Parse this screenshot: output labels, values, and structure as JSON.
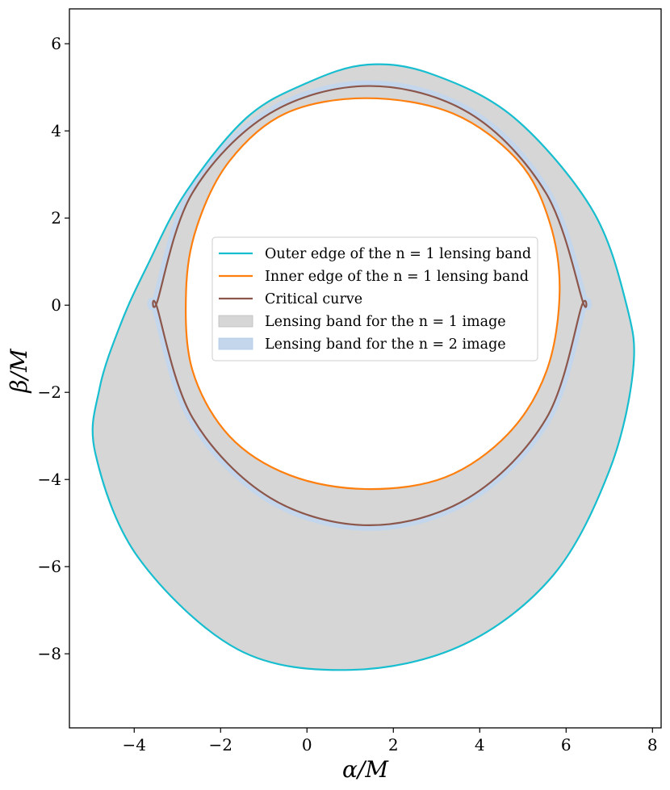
{
  "chart_data": {
    "type": "line",
    "title": "",
    "xlabel": "α/M",
    "ylabel": "β/M",
    "xlim": [
      -5.5,
      8.2
    ],
    "ylim": [
      -9.7,
      6.8
    ],
    "xticks": [
      -4,
      -2,
      0,
      2,
      4,
      6,
      8
    ],
    "yticks": [
      -8,
      -6,
      -4,
      -2,
      0,
      2,
      4,
      6
    ],
    "xtick_labels": [
      "−4",
      "−2",
      "0",
      "2",
      "4",
      "6",
      "8"
    ],
    "ytick_labels": [
      "−8",
      "−6",
      "−4",
      "−2",
      "0",
      "2",
      "4",
      "6"
    ],
    "grid": false,
    "legend_position": "center",
    "legend": [
      "Outer edge of the n = 1 lensing band",
      "Inner edge of the n = 1 lensing band",
      "Critical curve",
      "Lensing band for the n = 1 image",
      "Lensing band for the n = 2 image"
    ],
    "colors": {
      "outer_edge": "#17becf",
      "inner_edge": "#ff7f0e",
      "critical_curve": "#8c564b",
      "band_n1": "#d6d6d6",
      "band_n2": "#c3d6ec"
    },
    "series": [
      {
        "name": "Outer edge of the n = 1 lensing band",
        "kind": "line",
        "x": [
          1.4,
          2.9,
          4.8,
          6.6,
          7.4,
          7.55,
          7.0,
          5.7,
          3.6,
          1.0,
          -1.6,
          -3.9,
          -4.9,
          -4.8,
          -4.3,
          -3.7,
          -2.8,
          -1.4,
          0.0,
          1.4
        ],
        "y": [
          5.52,
          5.3,
          4.3,
          2.2,
          0.0,
          -1.5,
          -3.8,
          -6.2,
          -7.8,
          -8.37,
          -7.9,
          -5.8,
          -3.4,
          -1.9,
          -0.4,
          0.9,
          2.6,
          4.3,
          5.1,
          5.52
        ]
      },
      {
        "name": "Inner edge of the n = 1 lensing band",
        "kind": "line",
        "x": [
          1.37,
          3.38,
          4.9,
          5.62,
          5.85,
          5.55,
          4.66,
          3.2,
          1.37,
          -0.4,
          -1.8,
          -2.65,
          -2.8,
          -2.55,
          -1.8,
          -0.5,
          1.37
        ],
        "y": [
          4.75,
          4.4,
          3.3,
          1.9,
          0.3,
          -1.5,
          -2.95,
          -3.95,
          -4.22,
          -3.9,
          -3.0,
          -1.5,
          0.3,
          1.8,
          3.3,
          4.4,
          4.75
        ]
      },
      {
        "name": "Critical curve",
        "kind": "line",
        "x": [
          1.45,
          3.77,
          5.53,
          6.38,
          6.35,
          5.54,
          3.74,
          1.45,
          -0.85,
          -2.64,
          -3.47,
          -3.46,
          -2.65,
          -0.86,
          1.45
        ],
        "y": [
          5.03,
          4.4,
          2.58,
          0.1,
          -0.05,
          -2.6,
          -4.42,
          -5.05,
          -4.42,
          -2.6,
          -0.05,
          0.1,
          2.58,
          4.4,
          5.03
        ]
      }
    ]
  }
}
